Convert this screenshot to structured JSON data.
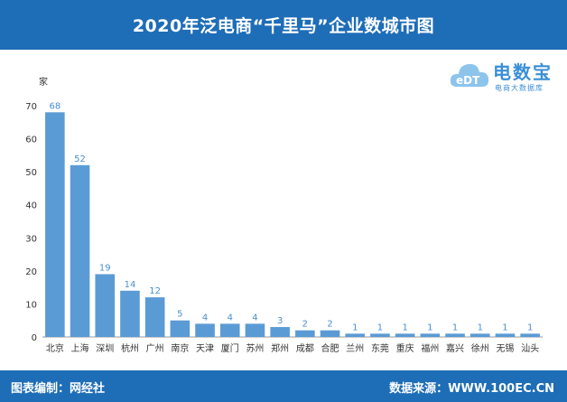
{
  "header": {
    "title": "2020年泛电商“千里马”企业数城市图"
  },
  "footer": {
    "left_text": "图表编制：网经社",
    "right_text": "数据来源：WWW.100EC.CN"
  },
  "logo": {
    "main_text": "电数宝",
    "sub_text": "电商大数据库",
    "mark_text": "eDT",
    "icon": "cloud-icon"
  },
  "colors": {
    "bar": "#5b9bd5",
    "header": "#1e6db7",
    "label": "#4a8fd0"
  },
  "chart_data": {
    "type": "bar",
    "ylabel": "家",
    "ylim": [
      0,
      70
    ],
    "yticks": [
      0,
      10,
      20,
      30,
      40,
      50,
      60,
      70
    ],
    "grid": false,
    "categories": [
      "北京",
      "上海",
      "深圳",
      "杭州",
      "广州",
      "南京",
      "天津",
      "厦门",
      "苏州",
      "郑州",
      "成都",
      "合肥",
      "兰州",
      "东莞",
      "重庆",
      "福州",
      "嘉兴",
      "徐州",
      "无锡",
      "汕头"
    ],
    "values": [
      68,
      52,
      19,
      14,
      12,
      5,
      4,
      4,
      4,
      3,
      2,
      2,
      1,
      1,
      1,
      1,
      1,
      1,
      1,
      1
    ]
  }
}
